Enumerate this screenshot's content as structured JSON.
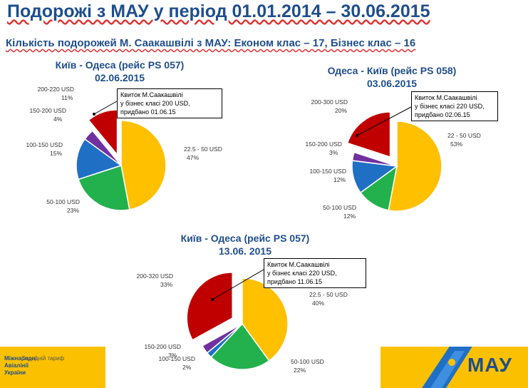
{
  "header": {
    "title": "Подорожі з МАУ у період  01.01.2014 – 30.06.2015",
    "subtitle": "Кількість подорожей М. Саакашвілі  з МАУ: Економ клас – 17, Бізнес клас – 16"
  },
  "chart_data": [
    {
      "type": "pie",
      "title_line1": "Київ - Одеса (рейс PS 057)",
      "title_line2": "02.06.2015",
      "slices": [
        {
          "label": "22.5 - 50 USD",
          "pct_label": "47%",
          "value": 47,
          "color": "#ffc000"
        },
        {
          "label": "50-100 USD",
          "pct_label": "23%",
          "value": 23,
          "color": "#22b14c"
        },
        {
          "label": "100-150 USD",
          "pct_label": "15%",
          "value": 15,
          "color": "#1f6fc5"
        },
        {
          "label": "150-200 USD",
          "pct_label": "4%",
          "value": 4,
          "color": "#7030a0"
        },
        {
          "label": "200-220 USD",
          "pct_label": "11%",
          "value": 11,
          "color": "#c00000"
        }
      ],
      "callout": "Квиток М.Саакашвілі\n у бізнес класі 200 USD,\nпридбано 01.06.15"
    },
    {
      "type": "pie",
      "title_line1": "Одеса - Київ (рейс PS 058)",
      "title_line2": "03.06.2015",
      "slices": [
        {
          "label": "22 - 50 USD",
          "pct_label": "53%",
          "value": 53,
          "color": "#ffc000"
        },
        {
          "label": "50-100 USD",
          "pct_label": "12%",
          "value": 12,
          "color": "#22b14c"
        },
        {
          "label": "100-150 USD",
          "pct_label": "12%",
          "value": 12,
          "color": "#1f6fc5"
        },
        {
          "label": "150-200 USD",
          "pct_label": "3%",
          "value": 3,
          "color": "#7030a0"
        },
        {
          "label": "200-300 USD",
          "pct_label": "20%",
          "value": 20,
          "color": "#c00000"
        }
      ],
      "callout": "Квиток М.Саакашвілі\n у бізнес класі 220 USD,\nпридбано 02.06.15"
    },
    {
      "type": "pie",
      "title_line1": "Київ - Одеса (рейс PS 057)",
      "title_line2": "13.06. 2015",
      "slices": [
        {
          "label": "22.5 - 50 USD",
          "pct_label": "40%",
          "value": 40,
          "color": "#ffc000"
        },
        {
          "label": "50-100 USD",
          "pct_label": "22%",
          "value": 22,
          "color": "#22b14c"
        },
        {
          "label": "100-150 USD",
          "pct_label": "2%",
          "value": 2,
          "color": "#1f6fc5"
        },
        {
          "label": "150-200 USD",
          "pct_label": "3%",
          "value": 3,
          "color": "#7030a0"
        },
        {
          "label": "200-320 USD",
          "pct_label": "33%",
          "value": 33,
          "color": "#c00000"
        }
      ],
      "callout": "Квиток М.Саакашвілі\n у бізнес класі 220 USD,\nпридбано 11.06.15"
    }
  ],
  "footer": {
    "org_name": "Міжнародні\nАвіалінії\nУкраїни",
    "note": "Середній тариф",
    "logo": "МАУ"
  }
}
